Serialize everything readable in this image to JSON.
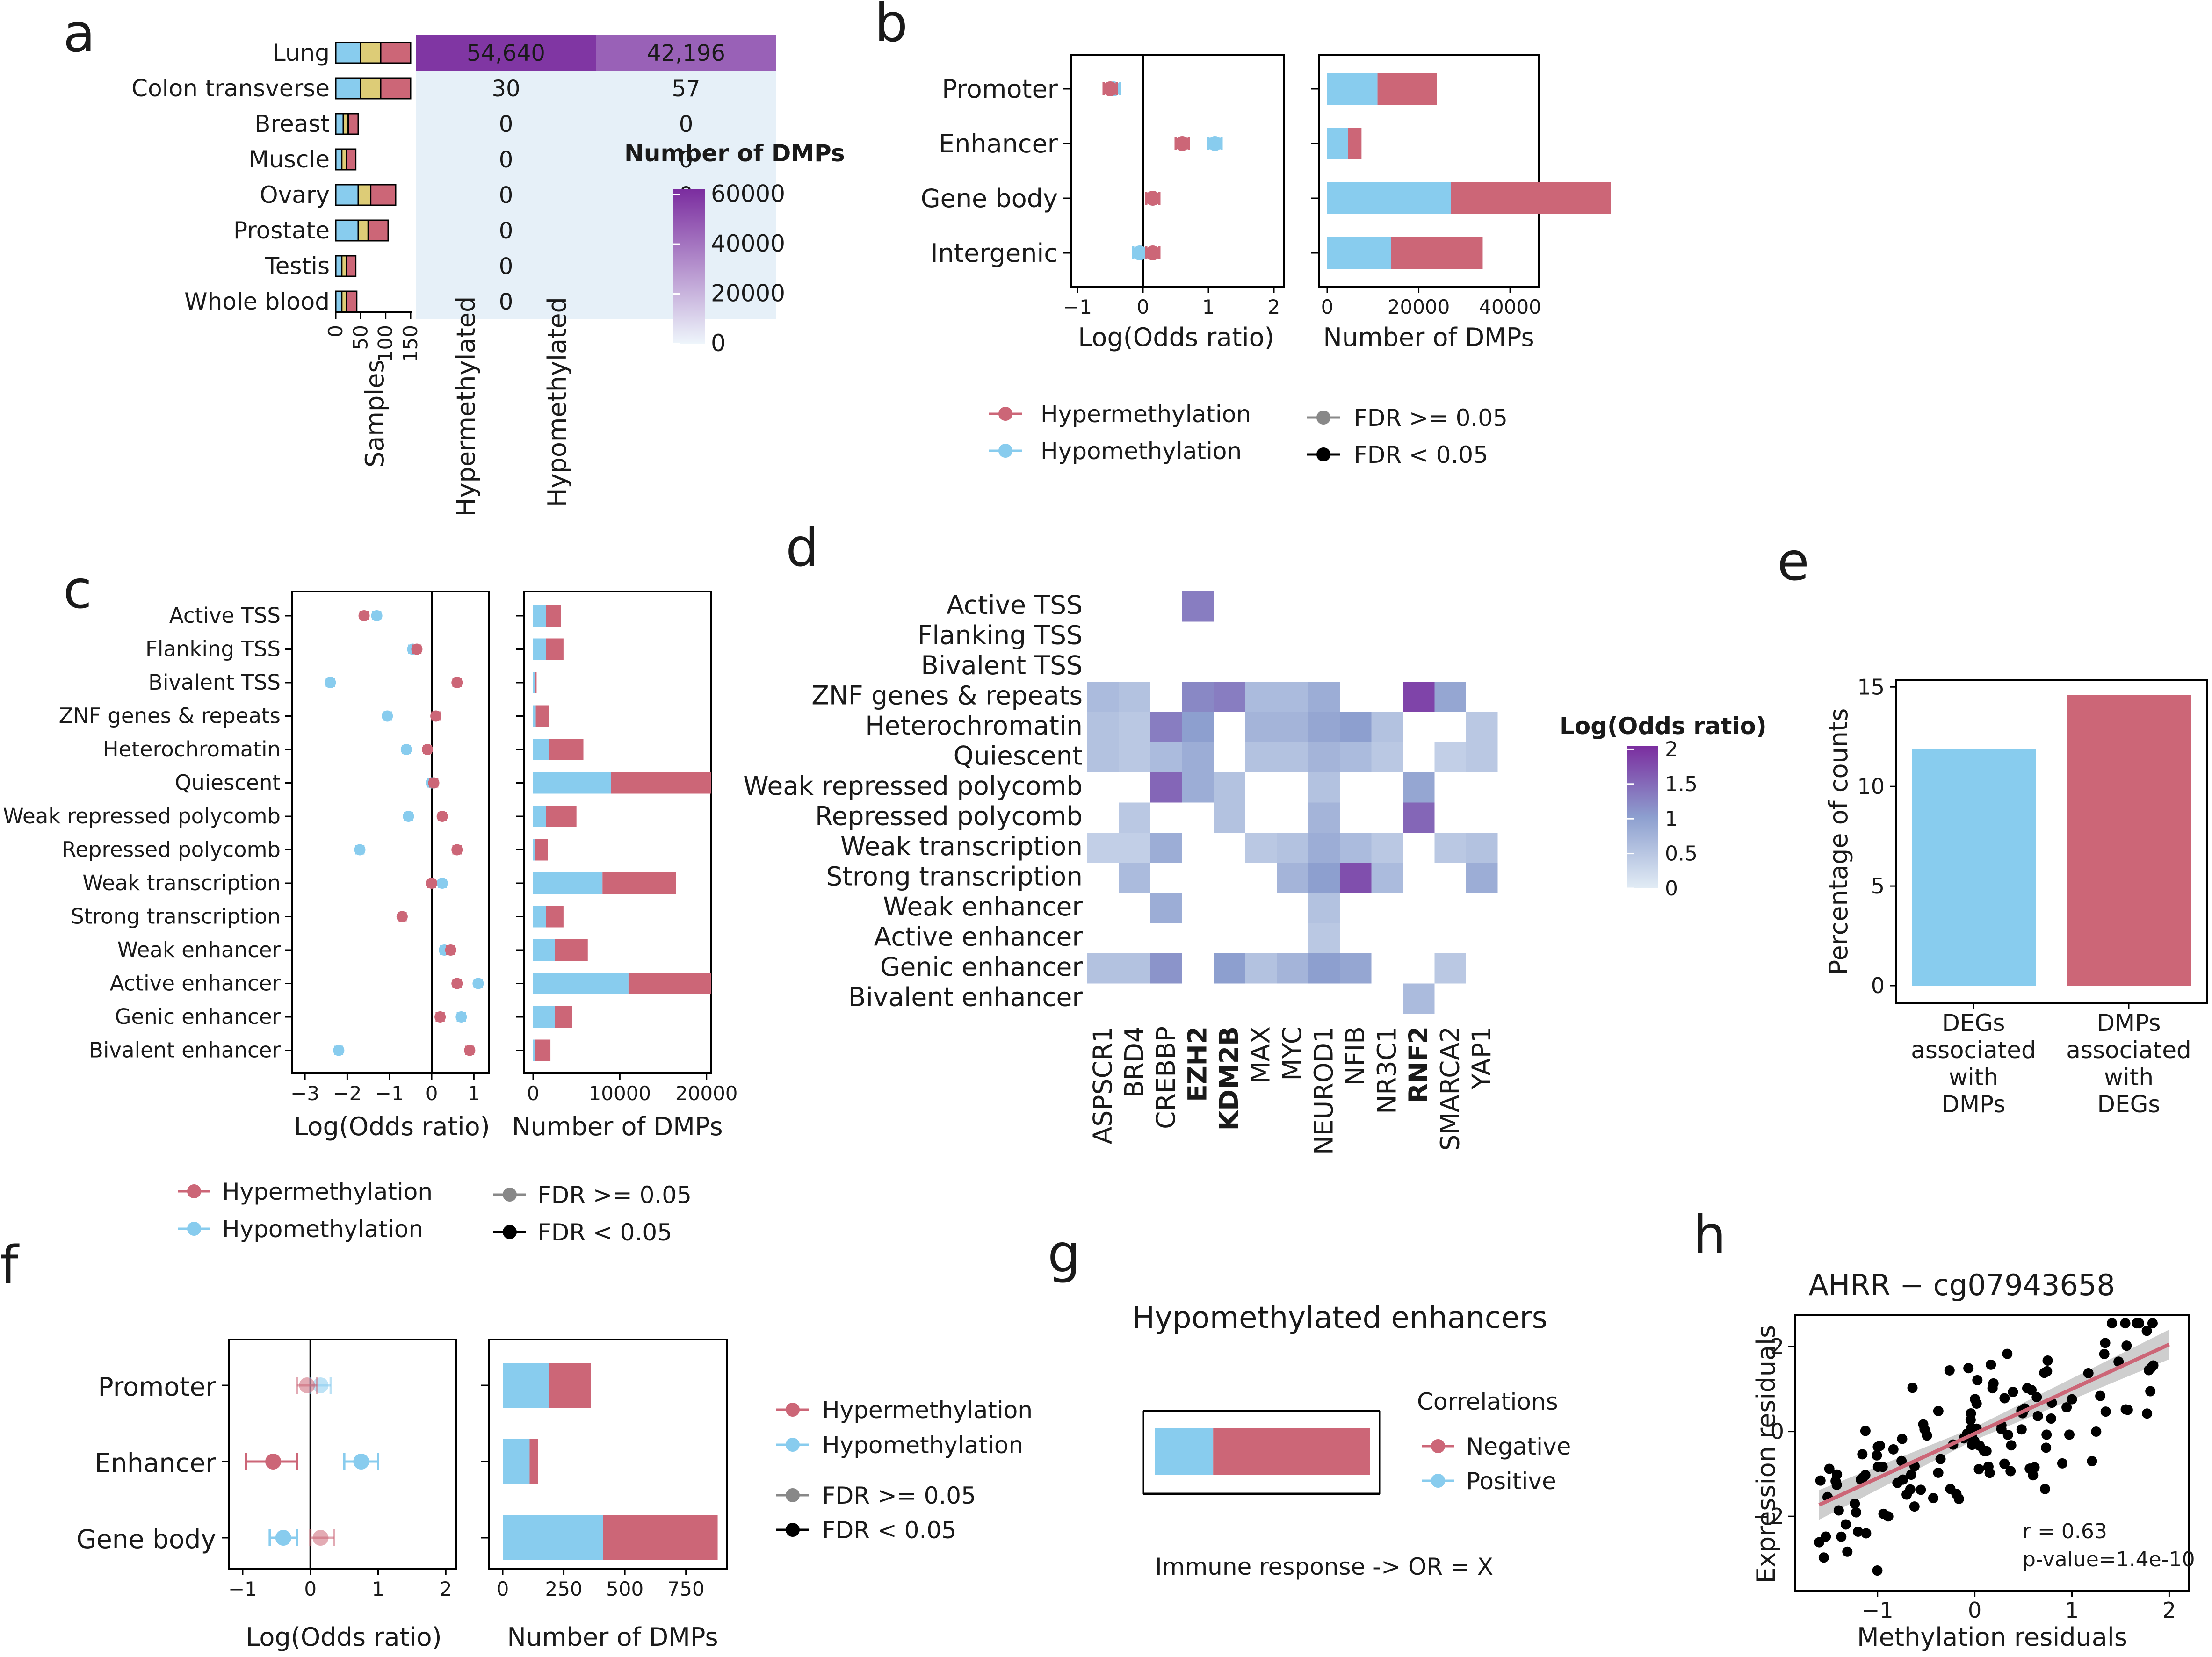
{
  "colors": {
    "hyper": "#CC6677",
    "hypo": "#88CCEE",
    "samples_yellow": "#DDCC77",
    "heat_low": "#e8f1f8",
    "heat_high": "#7B2D9F",
    "axis": "#000000"
  },
  "panel_letters": [
    "a",
    "b",
    "c",
    "d",
    "e",
    "f",
    "g",
    "h"
  ],
  "panel_a": {
    "tissues": [
      "Lung",
      "Colon transverse",
      "Breast",
      "Muscle",
      "Ovary",
      "Prostate",
      "Testis",
      "Whole blood"
    ],
    "samples_axis_ticks": [
      "0",
      "50",
      "100",
      "150"
    ],
    "samples_axis_title": "Samples",
    "samples_segments": [
      [
        50,
        40,
        60
      ],
      [
        50,
        40,
        60
      ],
      [
        15,
        10,
        20
      ],
      [
        12,
        10,
        18
      ],
      [
        45,
        25,
        50
      ],
      [
        45,
        20,
        40
      ],
      [
        12,
        10,
        18
      ],
      [
        12,
        10,
        20
      ]
    ],
    "columns": [
      "Hypermethylated",
      "Hypomethylated"
    ],
    "dmp_counts": [
      [
        "54,640",
        "42,196"
      ],
      [
        "30",
        "57"
      ],
      [
        "0",
        "0"
      ],
      [
        "0",
        "0"
      ],
      [
        "0",
        "0"
      ],
      [
        "0",
        "0"
      ],
      [
        "0",
        "0"
      ],
      [
        "0",
        "0"
      ]
    ],
    "dmp_values": [
      [
        54640,
        42196
      ],
      [
        30,
        57
      ],
      [
        0,
        0
      ],
      [
        0,
        0
      ],
      [
        0,
        0
      ],
      [
        0,
        0
      ],
      [
        0,
        0
      ],
      [
        0,
        0
      ]
    ],
    "legend_title": "Number of DMPs",
    "legend_ticks": [
      "60000",
      "40000",
      "20000",
      "0"
    ]
  },
  "panel_b": {
    "categories": [
      "Promoter",
      "Enhancer",
      "Gene body",
      "Intergenic"
    ],
    "x_label": "Log(Odds ratio)",
    "x_ticks": [
      "−1",
      "0",
      "1",
      "2"
    ],
    "hyper_or": [
      -0.5,
      0.6,
      0.15,
      0.15
    ],
    "hypo_or": [
      -0.45,
      1.1,
      0.15,
      -0.05
    ],
    "bar_x_label": "Number of DMPs",
    "bar_ticks": [
      "0",
      "20000",
      "40000"
    ],
    "bar_hypo": [
      11000,
      4500,
      27000,
      14000
    ],
    "bar_hyper": [
      13000,
      3000,
      35000,
      20000
    ],
    "legend_series": [
      "Hypermethylation",
      "Hypomethylation"
    ],
    "legend_fdr": [
      "FDR >= 0.05",
      "FDR < 0.05"
    ]
  },
  "panel_c": {
    "categories": [
      "Active TSS",
      "Flanking TSS",
      "Bivalent TSS",
      "ZNF genes & repeats",
      "Heterochromatin",
      "Quiescent",
      "Weak repressed polycomb",
      "Repressed polycomb",
      "Weak transcription",
      "Strong transcription",
      "Weak enhancer",
      "Active enhancer",
      "Genic enhancer",
      "Bivalent enhancer"
    ],
    "x_label": "Log(Odds ratio)",
    "x_ticks": [
      "−3",
      "−2",
      "−1",
      "0",
      "1"
    ],
    "hyper_or": [
      -1.6,
      -0.35,
      0.6,
      0.1,
      -0.1,
      0.05,
      0.25,
      0.6,
      0.0,
      -0.7,
      0.45,
      0.6,
      0.2,
      0.9
    ],
    "hypo_or": [
      -1.3,
      -0.45,
      -2.4,
      -1.05,
      -0.6,
      0.0,
      -0.55,
      -1.7,
      0.25,
      -0.7,
      0.3,
      1.1,
      0.7,
      -2.2
    ],
    "bar_x_label": "Number of DMPs",
    "bar_ticks": [
      "0",
      "10000",
      "20000"
    ],
    "bar_hypo": [
      1500,
      1500,
      200,
      300,
      1800,
      9000,
      1500,
      200,
      8000,
      1500,
      2500,
      11000,
      2500,
      200
    ],
    "bar_hyper": [
      1700,
      2000,
      200,
      1500,
      4000,
      11500,
      3500,
      1500,
      8500,
      2000,
      3800,
      9500,
      2000,
      1800
    ],
    "legend_series": [
      "Hypermethylation",
      "Hypomethylation"
    ],
    "legend_fdr": [
      "FDR >= 0.05",
      "FDR < 0.05"
    ]
  },
  "panel_d": {
    "rows": [
      "Active TSS",
      "Flanking TSS",
      "Bivalent TSS",
      "ZNF genes & repeats",
      "Heterochromatin",
      "Quiescent",
      "Weak repressed polycomb",
      "Repressed polycomb",
      "Weak transcription",
      "Strong transcription",
      "Weak enhancer",
      "Active enhancer",
      "Genic enhancer",
      "Bivalent enhancer"
    ],
    "cols": [
      "ASPSCR1",
      "BRD4",
      "CREBBP",
      "EZH2",
      "KDM2B",
      "MAX",
      "MYC",
      "NEUROD1",
      "NFIB",
      "NR3C1",
      "RNF2",
      "SMARCA2",
      "YAP1"
    ],
    "bold_cols": [
      "EZH2",
      "KDM2B",
      "RNF2"
    ],
    "values": [
      [
        null,
        null,
        null,
        1.3,
        null,
        null,
        null,
        null,
        null,
        null,
        null,
        null,
        null
      ],
      [
        null,
        null,
        null,
        null,
        null,
        null,
        null,
        null,
        null,
        null,
        null,
        null,
        null
      ],
      [
        null,
        null,
        null,
        null,
        null,
        null,
        null,
        null,
        null,
        null,
        null,
        null,
        null
      ],
      [
        0.6,
        0.5,
        null,
        1.2,
        1.3,
        0.6,
        0.6,
        0.8,
        null,
        null,
        1.8,
        0.9,
        null
      ],
      [
        0.5,
        0.4,
        1.3,
        1.0,
        null,
        0.7,
        0.7,
        0.9,
        1.0,
        0.5,
        null,
        null,
        0.4
      ],
      [
        0.5,
        0.4,
        0.6,
        0.8,
        null,
        0.5,
        0.5,
        0.7,
        0.6,
        0.4,
        null,
        0.3,
        0.4
      ],
      [
        null,
        null,
        1.5,
        0.8,
        0.5,
        null,
        null,
        0.5,
        null,
        null,
        0.9,
        null,
        null
      ],
      [
        null,
        0.4,
        null,
        null,
        0.5,
        null,
        null,
        0.7,
        null,
        null,
        1.5,
        null,
        null
      ],
      [
        0.3,
        0.3,
        0.8,
        null,
        null,
        0.4,
        0.5,
        0.8,
        0.6,
        0.4,
        null,
        0.4,
        0.5
      ],
      [
        null,
        0.6,
        null,
        null,
        null,
        null,
        0.7,
        1.0,
        1.7,
        0.6,
        null,
        null,
        0.8
      ],
      [
        null,
        null,
        0.8,
        null,
        null,
        null,
        null,
        0.5,
        null,
        null,
        null,
        null,
        null
      ],
      [
        null,
        null,
        null,
        null,
        null,
        null,
        null,
        0.4,
        null,
        null,
        null,
        null,
        null
      ],
      [
        0.5,
        0.5,
        1.1,
        null,
        1.0,
        0.5,
        0.7,
        1.0,
        0.9,
        null,
        null,
        0.4,
        null
      ],
      [
        null,
        null,
        null,
        null,
        null,
        null,
        null,
        null,
        null,
        null,
        0.6,
        null,
        null
      ]
    ],
    "legend_title": "Log(Odds ratio)",
    "legend_ticks": [
      "2",
      "1.5",
      "1",
      "0.5",
      "0"
    ]
  },
  "panel_e": {
    "y_label": "Percentage of counts",
    "y_ticks": [
      "0",
      "5",
      "10",
      "15"
    ],
    "bars": [
      {
        "label": [
          "DEGs",
          "associated",
          "with",
          "DMPs"
        ],
        "value": 11.9
      },
      {
        "label": [
          "DMPs",
          "associated",
          "with",
          "DEGs"
        ],
        "value": 14.6
      }
    ]
  },
  "panel_f": {
    "categories": [
      "Promoter",
      "Enhancer",
      "Gene body"
    ],
    "x_label": "Log(Odds ratio)",
    "x_ticks": [
      "−1",
      "0",
      "1",
      "2"
    ],
    "hyper_or": [
      -0.05,
      -0.55,
      0.15
    ],
    "hyper_lo": [
      -0.2,
      -0.95,
      0.0
    ],
    "hyper_hi": [
      0.1,
      -0.2,
      0.35
    ],
    "hyper_sig": [
      false,
      true,
      false
    ],
    "hypo_or": [
      0.15,
      0.75,
      -0.4
    ],
    "hypo_lo": [
      0.0,
      0.5,
      -0.6
    ],
    "hypo_hi": [
      0.3,
      1.0,
      -0.2
    ],
    "hypo_sig": [
      false,
      true,
      true
    ],
    "bar_x_label": "Number of DMPs",
    "bar_ticks": [
      "0",
      "250",
      "500",
      "750"
    ],
    "bar_hypo": [
      190,
      110,
      410
    ],
    "bar_hyper": [
      170,
      35,
      470
    ],
    "legend_series": [
      "Hypermethylation",
      "Hypomethylation"
    ],
    "legend_fdr": [
      "FDR >= 0.05",
      "FDR < 0.05"
    ]
  },
  "panel_g": {
    "title": "Hypomethylated enhancers",
    "legend_title": "Correlations",
    "legend_items": [
      "Negative",
      "Positive"
    ],
    "positive_fraction": 0.27,
    "note": "Immune response -> OR = X"
  },
  "panel_h": {
    "title": "AHRR − cg07943658",
    "x_label": "Methylation residuals",
    "y_label": "Expression residuals",
    "x_ticks": [
      "−1",
      "0",
      "1",
      "2"
    ],
    "y_ticks": [
      "2",
      "0",
      "−2"
    ],
    "stat_r": "r = 0.63",
    "stat_p": "p-value=1.4e-10",
    "fit": {
      "slope": 1.05,
      "intercept": -0.05
    }
  },
  "chart_data": [
    {
      "type": "table",
      "categories": [
        "Lung",
        "Colon transverse",
        "Breast",
        "Muscle",
        "Ovary",
        "Prostate",
        "Testis",
        "Whole blood"
      ],
      "series": [
        {
          "name": "Hypermethylated",
          "values": [
            54640,
            30,
            0,
            0,
            0,
            0,
            0,
            0
          ]
        },
        {
          "name": "Hypomethylated",
          "values": [
            42196,
            57,
            0,
            0,
            0,
            0,
            0,
            0
          ]
        }
      ],
      "title": "",
      "xlabel": "",
      "ylabel": "",
      "legend_title": "Number of DMPs"
    },
    {
      "type": "scatter",
      "categories": [
        "Promoter",
        "Enhancer",
        "Gene body",
        "Intergenic"
      ],
      "xlabel": "Log(Odds ratio)",
      "series": [
        {
          "name": "Hypermethylation",
          "values": [
            -0.5,
            0.6,
            0.15,
            0.15
          ]
        },
        {
          "name": "Hypomethylation",
          "values": [
            -0.45,
            1.1,
            0.15,
            -0.05
          ]
        }
      ]
    },
    {
      "type": "bar",
      "categories": [
        "Promoter",
        "Enhancer",
        "Gene body",
        "Intergenic"
      ],
      "xlabel": "Number of DMPs",
      "series": [
        {
          "name": "Hypomethylation",
          "values": [
            11000,
            4500,
            27000,
            14000
          ]
        },
        {
          "name": "Hypermethylation",
          "values": [
            13000,
            3000,
            35000,
            20000
          ]
        }
      ]
    },
    {
      "type": "heatmap",
      "title": "",
      "legend_title": "Log(Odds ratio)"
    },
    {
      "type": "bar",
      "categories": [
        "DEGs associated with DMPs",
        "DMPs associated with DEGs"
      ],
      "values": [
        11.9,
        14.6
      ],
      "ylabel": "Percentage of counts",
      "ylim": [
        0,
        15
      ]
    },
    {
      "type": "scatter",
      "title": "AHRR − cg07943658",
      "xlabel": "Methylation residuals",
      "ylabel": "Expression residuals"
    }
  ]
}
